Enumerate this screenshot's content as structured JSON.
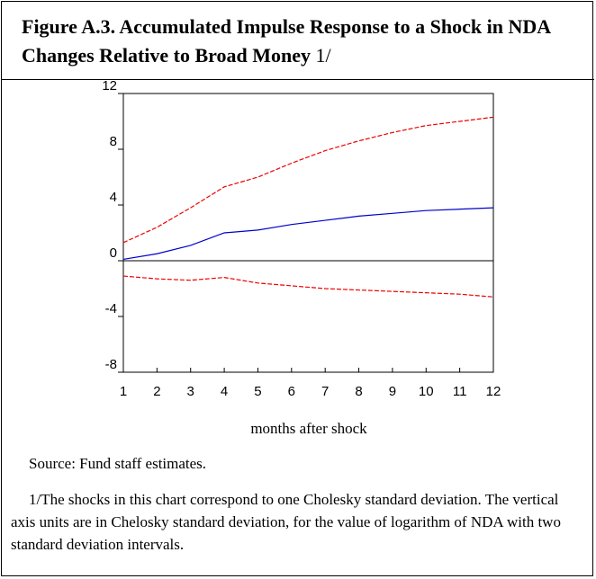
{
  "chart_data": {
    "type": "line",
    "title": "Figure A.3. Accumulated Impulse Response to a Shock in NDA Changes Relative to Broad Money",
    "title_note": "1/",
    "x_label": "months after shock",
    "source": "Source: Fund staff estimates.",
    "footnote": "1/The shocks in this chart correspond to one Cholesky standard deviation. The vertical axis units are in Chelosky standard deviation, for the value of logarithm of NDA with two standard deviation intervals.",
    "x": [
      1,
      2,
      3,
      4,
      5,
      6,
      7,
      8,
      9,
      10,
      11,
      12
    ],
    "series": [
      {
        "color": "#0000cc",
        "dashed": false,
        "values": [
          0.1,
          0.5,
          1.1,
          2.0,
          2.2,
          2.6,
          2.9,
          3.2,
          3.4,
          3.6,
          3.7,
          3.8
        ]
      },
      {
        "color": "#ee0000",
        "dashed": true,
        "values": [
          1.3,
          2.4,
          3.8,
          5.3,
          6.0,
          7.0,
          7.9,
          8.6,
          9.2,
          9.7,
          10.0,
          10.3
        ]
      },
      {
        "color": "#ee0000",
        "dashed": true,
        "values": [
          -1.1,
          -1.3,
          -1.4,
          -1.2,
          -1.6,
          -1.8,
          -2.0,
          -2.1,
          -2.2,
          -2.3,
          -2.4,
          -2.6
        ]
      }
    ],
    "xlim": [
      1,
      12
    ],
    "xticks": [
      1,
      2,
      3,
      4,
      5,
      6,
      7,
      8,
      9,
      10,
      11,
      12
    ],
    "ylim": [
      -8,
      12
    ],
    "yticks": [
      -8,
      -4,
      0,
      4,
      8,
      12
    ],
    "zero_line": true
  }
}
